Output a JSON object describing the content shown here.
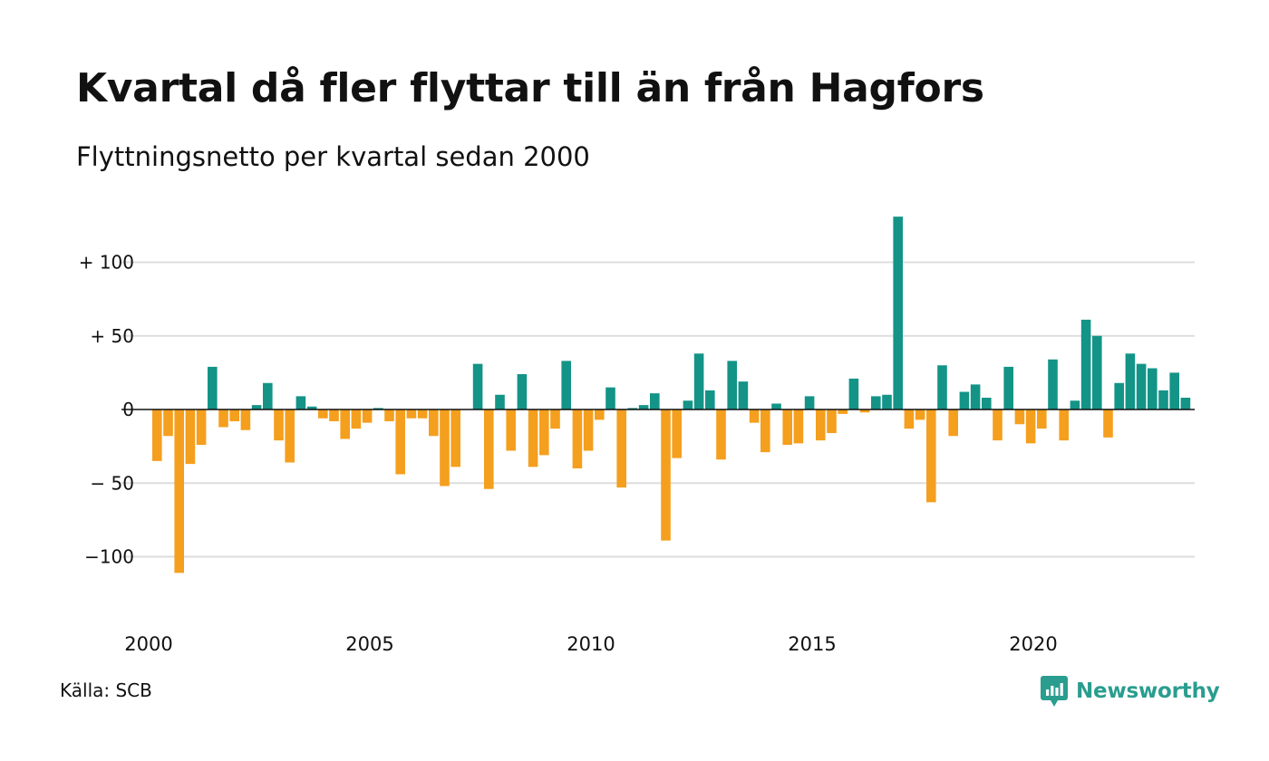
{
  "title": "Kvartal då fler flyttar till än från Hagfors",
  "subtitle": "Flyttningsnetto per kvartal sedan 2000",
  "source": "Källa: SCB",
  "brand": {
    "name": "Newsworthy",
    "icon": "newsworthy-logo-icon",
    "color": "#2a9d8f"
  },
  "colors": {
    "positive": "#139487",
    "negative": "#f59f1e",
    "grid": "#dddddd"
  },
  "chart_data": {
    "type": "bar",
    "title": "Kvartal då fler flyttar till än från Hagfors",
    "subtitle": "Flyttningsnetto per kvartal sedan 2000",
    "xlabel": "",
    "ylabel": "",
    "ylim": [
      -130,
      135
    ],
    "yticks": [
      {
        "value": 100,
        "label": "+ 100"
      },
      {
        "value": 50,
        "label": "+  50"
      },
      {
        "value": 0,
        "label": "0"
      },
      {
        "value": -50,
        "label": "− 50"
      },
      {
        "value": -100,
        "label": "−100"
      }
    ],
    "xticks": [
      "2000",
      "2005",
      "2010",
      "2015",
      "2020"
    ],
    "start_year": 2000,
    "grid": true,
    "legend": "none",
    "values": [
      -35,
      -18,
      -111,
      -37,
      -24,
      29,
      -12,
      -8,
      -14,
      3,
      18,
      -21,
      -36,
      9,
      2,
      -6,
      -8,
      -20,
      -13,
      -9,
      1,
      -8,
      -44,
      -6,
      -6,
      -18,
      -52,
      -39,
      0,
      31,
      -54,
      10,
      -28,
      24,
      -39,
      -31,
      -13,
      33,
      -40,
      -28,
      -7,
      15,
      -53,
      1,
      3,
      11,
      -89,
      -33,
      6,
      38,
      13,
      -34,
      33,
      19,
      -9,
      -29,
      4,
      -24,
      -23,
      9,
      -21,
      -16,
      -3,
      21,
      -2,
      9,
      10,
      131,
      -13,
      -7,
      -63,
      30,
      -18,
      12,
      17,
      8,
      -21,
      29,
      -10,
      -23,
      -13,
      34,
      -21,
      6,
      61,
      50,
      -19,
      18,
      38,
      31,
      28,
      13,
      25,
      8
    ]
  }
}
